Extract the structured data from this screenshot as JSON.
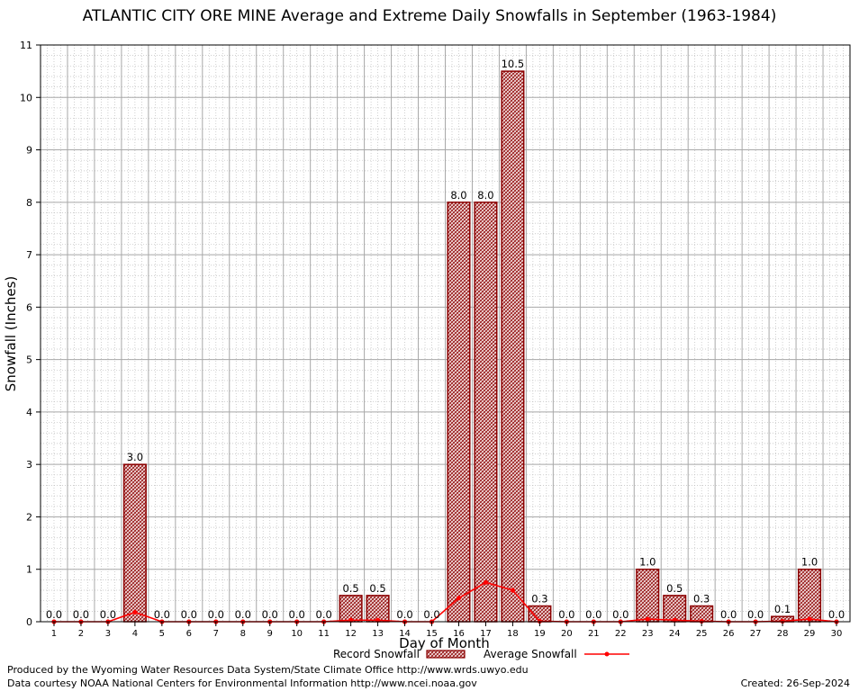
{
  "chart_data": {
    "type": "bar",
    "title": "ATLANTIC CITY ORE MINE Average and Extreme Daily Snowfalls in September (1963-1984)",
    "xlabel": "Day of Month",
    "ylabel": "Snowfall (Inches)",
    "ylim": [
      0,
      11
    ],
    "yticks": [
      0,
      1,
      2,
      3,
      4,
      5,
      6,
      7,
      8,
      9,
      10,
      11
    ],
    "grid": true,
    "legend_placement": "bottom",
    "categories": [
      "1",
      "2",
      "3",
      "4",
      "5",
      "6",
      "7",
      "8",
      "9",
      "10",
      "11",
      "12",
      "13",
      "14",
      "15",
      "16",
      "17",
      "18",
      "19",
      "20",
      "21",
      "22",
      "23",
      "24",
      "25",
      "26",
      "27",
      "28",
      "29",
      "30"
    ],
    "series": [
      {
        "name": "Record Snowfall",
        "type": "bar",
        "color": "#8b0000",
        "values": [
          0.0,
          0.0,
          0.0,
          3.0,
          0.0,
          0.0,
          0.0,
          0.0,
          0.0,
          0.0,
          0.0,
          0.5,
          0.5,
          0.0,
          0.0,
          8.0,
          8.0,
          10.5,
          0.3,
          0.0,
          0.0,
          0.0,
          1.0,
          0.5,
          0.3,
          0.0,
          0.0,
          0.1,
          1.0,
          0.0
        ],
        "labels": [
          "0.0",
          "0.0",
          "0.0",
          "3.0",
          "0.0",
          "0.0",
          "0.0",
          "0.0",
          "0.0",
          "0.0",
          "0.0",
          "0.5",
          "0.5",
          "0.0",
          "0.0",
          "8.0",
          "8.0",
          "10.5",
          "0.3",
          "0.0",
          "0.0",
          "0.0",
          "1.0",
          "0.5",
          "0.3",
          "0.0",
          "0.0",
          "0.1",
          "1.0",
          "0.0"
        ]
      },
      {
        "name": "Average Snowfall",
        "type": "line",
        "color": "#ff0000",
        "values": [
          0,
          0,
          0,
          0.18,
          0,
          0,
          0,
          0,
          0,
          0,
          0,
          0.03,
          0.03,
          0,
          0,
          0.45,
          0.75,
          0.6,
          0.01,
          0,
          0,
          0,
          0.05,
          0.03,
          0.01,
          0,
          0,
          0.01,
          0.05,
          0
        ]
      }
    ]
  },
  "footer": {
    "produced_by": "Produced by the Wyoming Water Resources Data System/State Climate Office http://www.wrds.uwyo.edu",
    "courtesy": "Data courtesy NOAA National Centers for Environmental Information http://www.ncei.noaa.gov",
    "created": "Created:  26-Sep-2024"
  }
}
